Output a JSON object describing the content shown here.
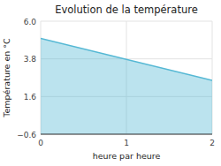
{
  "chart_data": {
    "type": "area",
    "title": "Evolution de la température",
    "xlabel": "heure par heure",
    "ylabel": "Température en °C",
    "x": [
      0,
      2
    ],
    "values": [
      5.0,
      2.55
    ],
    "color": "#55b8d4",
    "xlim": [
      0,
      2
    ],
    "ylim": [
      -0.6,
      6.0
    ],
    "xticks": [
      0,
      1,
      2
    ],
    "yticks": [
      {
        "value": -0.6,
        "label": "−0.6"
      },
      1.6,
      3.8,
      {
        "value": 6.0,
        "label": "6.0"
      }
    ],
    "grid": true
  }
}
